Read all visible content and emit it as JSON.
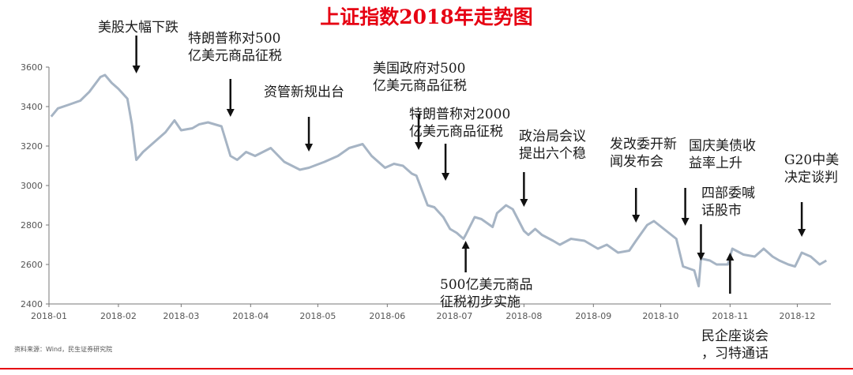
{
  "chart_data": {
    "type": "line",
    "title": "上证指数2018年走势图",
    "x_ticks": [
      "2018-01",
      "2018-02",
      "2018-03",
      "2018-04",
      "2018-05",
      "2018-06",
      "2018-07",
      "2018-08",
      "2018-09",
      "2018-10",
      "2018-11",
      "2018-12"
    ],
    "y_ticks": [
      2400,
      2600,
      2800,
      3000,
      3200,
      3400,
      3600
    ],
    "ylim": [
      2400,
      3600
    ],
    "grid": false,
    "line_color": "#a6b4c4",
    "x": [
      "2018-01-02",
      "2018-01-05",
      "2018-01-10",
      "2018-01-15",
      "2018-01-19",
      "2018-01-24",
      "2018-01-26",
      "2018-01-29",
      "2018-02-01",
      "2018-02-05",
      "2018-02-07",
      "2018-02-09",
      "2018-02-12",
      "2018-02-22",
      "2018-02-26",
      "2018-03-01",
      "2018-03-06",
      "2018-03-09",
      "2018-03-13",
      "2018-03-19",
      "2018-03-23",
      "2018-03-26",
      "2018-03-30",
      "2018-04-03",
      "2018-04-10",
      "2018-04-16",
      "2018-04-23",
      "2018-04-27",
      "2018-05-04",
      "2018-05-10",
      "2018-05-15",
      "2018-05-21",
      "2018-05-25",
      "2018-05-31",
      "2018-06-04",
      "2018-06-08",
      "2018-06-12",
      "2018-06-14",
      "2018-06-19",
      "2018-06-22",
      "2018-06-26",
      "2018-06-29",
      "2018-07-02",
      "2018-07-05",
      "2018-07-06",
      "2018-07-10",
      "2018-07-13",
      "2018-07-18",
      "2018-07-20",
      "2018-07-24",
      "2018-07-27",
      "2018-08-01",
      "2018-08-03",
      "2018-08-06",
      "2018-08-09",
      "2018-08-14",
      "2018-08-17",
      "2018-08-22",
      "2018-08-28",
      "2018-09-03",
      "2018-09-07",
      "2018-09-12",
      "2018-09-17",
      "2018-09-20",
      "2018-09-25",
      "2018-09-28",
      "2018-10-08",
      "2018-10-11",
      "2018-10-16",
      "2018-10-18",
      "2018-10-19",
      "2018-10-23",
      "2018-10-26",
      "2018-10-31",
      "2018-11-02",
      "2018-11-07",
      "2018-11-12",
      "2018-11-16",
      "2018-11-20",
      "2018-11-23",
      "2018-11-27",
      "2018-11-30",
      "2018-12-03",
      "2018-12-07",
      "2018-12-11",
      "2018-12-14"
    ],
    "series": [
      {
        "values": [
          3349,
          3391,
          3410,
          3430,
          3475,
          3550,
          3560,
          3520,
          3490,
          3440,
          3310,
          3130,
          3170,
          3270,
          3330,
          3280,
          3290,
          3310,
          3320,
          3300,
          3150,
          3130,
          3170,
          3150,
          3190,
          3120,
          3080,
          3090,
          3120,
          3150,
          3190,
          3210,
          3150,
          3090,
          3110,
          3100,
          3060,
          3050,
          2900,
          2890,
          2840,
          2780,
          2760,
          2730,
          2750,
          2840,
          2830,
          2790,
          2860,
          2900,
          2880,
          2770,
          2750,
          2780,
          2750,
          2720,
          2700,
          2730,
          2720,
          2680,
          2700,
          2660,
          2670,
          2720,
          2800,
          2820,
          2730,
          2590,
          2570,
          2490,
          2630,
          2620,
          2600,
          2600,
          2680,
          2650,
          2640,
          2680,
          2640,
          2620,
          2600,
          2590,
          2660,
          2640,
          2600,
          2620
        ]
      }
    ],
    "annotations": [
      {
        "text": "美股大幅下跌",
        "x": "2018-02-09",
        "direction": "down"
      },
      {
        "text": "特朗普称对500\n亿美元商品征税",
        "x": "2018-03-23",
        "direction": "down"
      },
      {
        "text": "资管新规出台",
        "x": "2018-04-27",
        "direction": "down"
      },
      {
        "text": "美国政府对500\n亿美元商品征税",
        "x": "2018-06-15",
        "direction": "down"
      },
      {
        "text": "特朗普称对2000\n亿美元商品征税",
        "x": "2018-06-27",
        "direction": "down"
      },
      {
        "text": "500亿美元商品\n征税初步实施",
        "x": "2018-07-06",
        "direction": "up"
      },
      {
        "text": "政治局会议\n提出六个稳",
        "x": "2018-08-01",
        "direction": "down"
      },
      {
        "text": "发改委开新\n闻发布会",
        "x": "2018-09-20",
        "direction": "down"
      },
      {
        "text": "国庆美债收\n益率上升",
        "x": "2018-10-12",
        "direction": "down"
      },
      {
        "text": "四部委喊\n话股市",
        "x": "2018-10-19",
        "direction": "down"
      },
      {
        "text": "民企座谈会\n，习特通话",
        "x": "2018-11-01",
        "direction": "up"
      },
      {
        "text": "G20中美\n决定谈判",
        "x": "2018-12-03",
        "direction": "down"
      }
    ],
    "source": "资料来源：Wind，民生证券研究院"
  }
}
